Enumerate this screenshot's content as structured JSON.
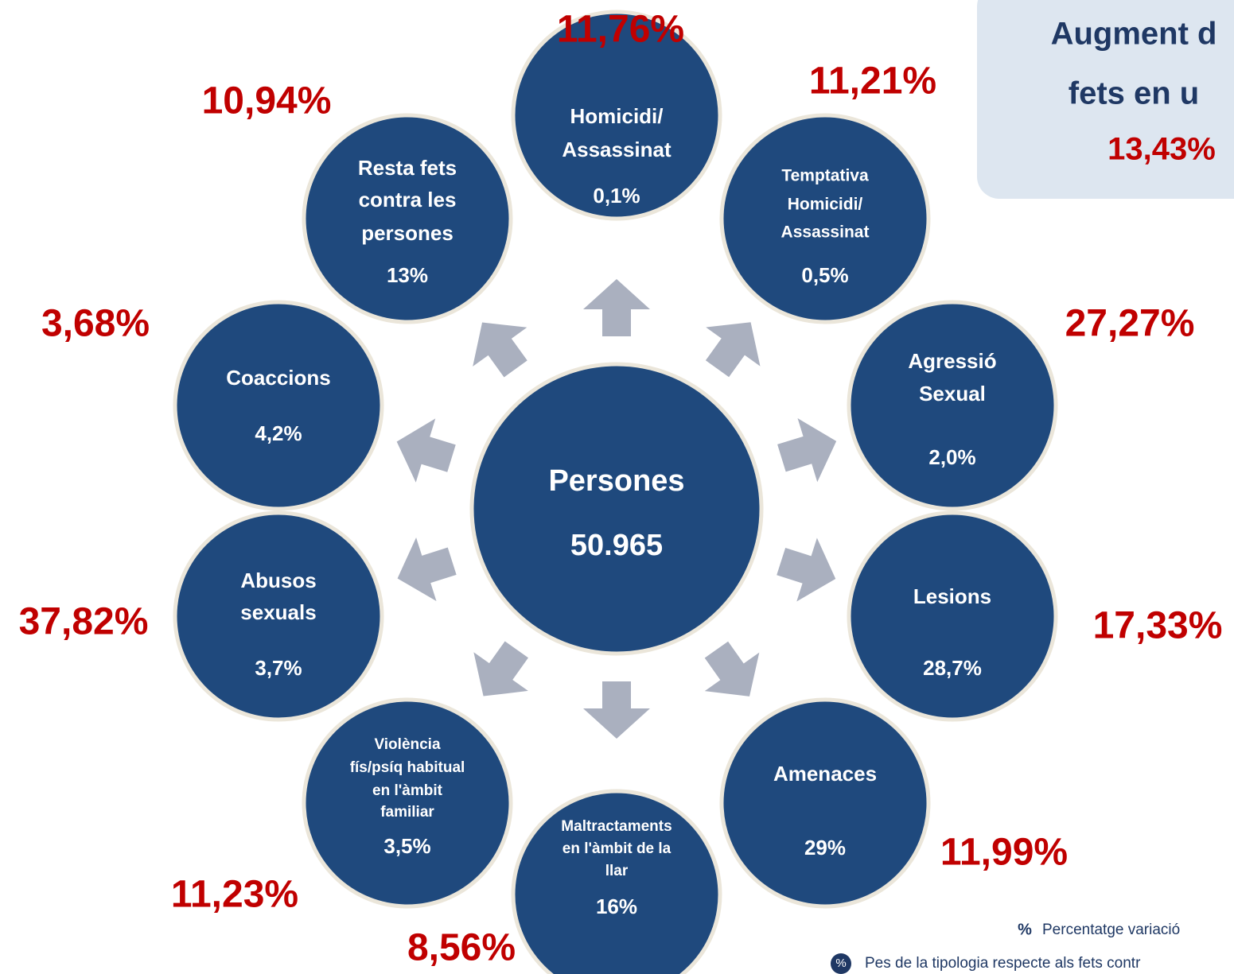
{
  "center": {
    "label": "Persones",
    "value": "50.965"
  },
  "nodes": [
    {
      "lines": [
        "Homicidi/",
        "Assassinat"
      ],
      "share": "0,1%",
      "variation": "11,76%"
    },
    {
      "lines": [
        "Temptativa",
        "Homicidi/",
        "Assassinat"
      ],
      "share": "0,5%",
      "variation": "11,21%"
    },
    {
      "lines": [
        "Agressió",
        "Sexual"
      ],
      "share": "2,0%",
      "variation": "27,27%"
    },
    {
      "lines": [
        "Lesions"
      ],
      "share": "28,7%",
      "variation": "17,33%"
    },
    {
      "lines": [
        "Amenaces"
      ],
      "share": "29%",
      "variation": "11,99%"
    },
    {
      "lines": [
        "Maltractaments",
        "en l'àmbit de la",
        "llar"
      ],
      "share": "16%",
      "variation": "8,56%"
    },
    {
      "lines": [
        "Violència",
        "fís/psíq habitual",
        "en l'àmbit",
        "familiar"
      ],
      "share": "3,5%",
      "variation": "11,23%"
    },
    {
      "lines": [
        "Abusos",
        "sexuals"
      ],
      "share": "3,7%",
      "variation": "37,82%"
    },
    {
      "lines": [
        "Coaccions"
      ],
      "share": "4,2%",
      "variation": "3,68%"
    },
    {
      "lines": [
        "Resta fets",
        "contra les",
        "persones"
      ],
      "share": "13%",
      "variation": "10,94%"
    }
  ],
  "info_box": {
    "lines": [
      "Augment d",
      "fets en u"
    ],
    "value": "13,43%"
  },
  "legend": {
    "variation_symbol": "%",
    "variation_text": "Percentatge variació",
    "share_symbol": "%",
    "share_text": "Pes de la tipologia respecte als fets contr"
  }
}
